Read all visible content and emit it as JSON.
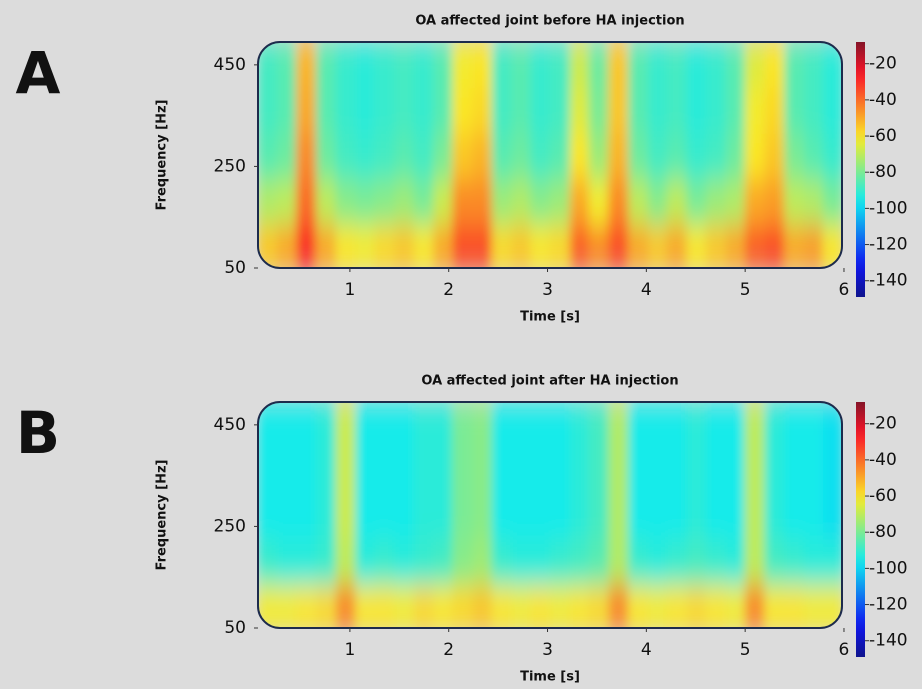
{
  "chart_data": [
    {
      "type": "heatmap",
      "panel_label": "A",
      "title": "OA affected joint before HA injection",
      "x_label": "Time [s]",
      "y_label": "Frequency [Hz]",
      "x": [
        0.17,
        0.37,
        0.56,
        0.76,
        0.96,
        1.16,
        1.35,
        1.55,
        1.75,
        1.95,
        2.14,
        2.34,
        2.54,
        2.74,
        2.93,
        3.13,
        3.33,
        3.52,
        3.72,
        3.92,
        4.12,
        4.31,
        4.51,
        4.71,
        4.91,
        5.1,
        5.3,
        5.5,
        5.7,
        5.89
      ],
      "y": [
        90,
        180,
        270,
        360,
        450
      ],
      "z": [
        [
          -55,
          -50,
          -30,
          -50,
          -60,
          -62,
          -58,
          -55,
          -60,
          -50,
          -35,
          -35,
          -58,
          -55,
          -60,
          -58,
          -38,
          -45,
          -35,
          -50,
          -55,
          -50,
          -60,
          -55,
          -50,
          -38,
          -35,
          -50,
          -48,
          -60
        ],
        [
          -72,
          -70,
          -40,
          -70,
          -78,
          -80,
          -78,
          -75,
          -80,
          -68,
          -45,
          -45,
          -75,
          -72,
          -78,
          -75,
          -50,
          -62,
          -45,
          -70,
          -78,
          -70,
          -80,
          -75,
          -72,
          -50,
          -48,
          -70,
          -72,
          -80
        ],
        [
          -85,
          -82,
          -45,
          -82,
          -88,
          -90,
          -88,
          -85,
          -88,
          -80,
          -55,
          -52,
          -85,
          -82,
          -88,
          -85,
          -60,
          -75,
          -52,
          -82,
          -88,
          -85,
          -90,
          -88,
          -82,
          -60,
          -55,
          -80,
          -85,
          -90
        ],
        [
          -88,
          -85,
          -50,
          -85,
          -90,
          -92,
          -90,
          -88,
          -90,
          -85,
          -60,
          -58,
          -88,
          -85,
          -90,
          -88,
          -65,
          -80,
          -55,
          -85,
          -90,
          -88,
          -92,
          -90,
          -85,
          -62,
          -58,
          -85,
          -88,
          -92
        ],
        [
          -88,
          -85,
          -52,
          -85,
          -90,
          -92,
          -90,
          -88,
          -90,
          -85,
          -62,
          -60,
          -88,
          -85,
          -90,
          -88,
          -68,
          -82,
          -55,
          -85,
          -90,
          -88,
          -92,
          -90,
          -85,
          -65,
          -60,
          -85,
          -88,
          -92
        ]
      ],
      "xlim": [
        0.07,
        5.98
      ],
      "xticks": [
        1,
        2,
        3,
        4,
        5,
        6
      ],
      "ylim": [
        50,
        495
      ],
      "yticks": [
        50,
        250,
        450
      ],
      "colormap": "jet",
      "clim": [
        -149,
        -8
      ],
      "cticks": [
        -20,
        -40,
        -60,
        -80,
        -100,
        -120,
        -140
      ]
    },
    {
      "type": "heatmap",
      "panel_label": "B",
      "title": "OA affected joint after HA injection",
      "x_label": "Time [s]",
      "y_label": "Frequency [Hz]",
      "x": [
        0.17,
        0.37,
        0.56,
        0.76,
        0.96,
        1.16,
        1.35,
        1.55,
        1.75,
        1.95,
        2.14,
        2.34,
        2.54,
        2.74,
        2.93,
        3.13,
        3.33,
        3.52,
        3.72,
        3.92,
        4.12,
        4.31,
        4.51,
        4.71,
        4.91,
        5.1,
        5.3,
        5.5,
        5.7,
        5.89
      ],
      "y": [
        90,
        180,
        270,
        360,
        450
      ],
      "z": [
        [
          -62,
          -62,
          -60,
          -58,
          -45,
          -60,
          -60,
          -62,
          -58,
          -60,
          -58,
          -55,
          -60,
          -62,
          -60,
          -62,
          -60,
          -58,
          -45,
          -60,
          -62,
          -60,
          -58,
          -60,
          -62,
          -45,
          -60,
          -60,
          -62,
          -62
        ],
        [
          -90,
          -92,
          -92,
          -90,
          -70,
          -92,
          -90,
          -92,
          -90,
          -88,
          -78,
          -75,
          -90,
          -92,
          -92,
          -90,
          -88,
          -85,
          -72,
          -90,
          -92,
          -90,
          -88,
          -90,
          -92,
          -70,
          -88,
          -90,
          -92,
          -92
        ],
        [
          -95,
          -95,
          -95,
          -92,
          -68,
          -95,
          -95,
          -95,
          -92,
          -92,
          -80,
          -78,
          -95,
          -95,
          -95,
          -95,
          -92,
          -88,
          -72,
          -95,
          -95,
          -95,
          -92,
          -95,
          -95,
          -70,
          -92,
          -95,
          -95,
          -98
        ],
        [
          -95,
          -95,
          -95,
          -92,
          -68,
          -95,
          -95,
          -95,
          -92,
          -92,
          -80,
          -78,
          -95,
          -95,
          -95,
          -95,
          -92,
          -88,
          -72,
          -95,
          -95,
          -95,
          -92,
          -95,
          -95,
          -70,
          -92,
          -95,
          -95,
          -98
        ],
        [
          -95,
          -95,
          -95,
          -92,
          -68,
          -95,
          -95,
          -95,
          -92,
          -92,
          -80,
          -78,
          -95,
          -95,
          -95,
          -95,
          -92,
          -88,
          -72,
          -95,
          -95,
          -95,
          -92,
          -95,
          -95,
          -70,
          -92,
          -95,
          -95,
          -98
        ]
      ],
      "xlim": [
        0.07,
        5.98
      ],
      "xticks": [
        1,
        2,
        3,
        4,
        5,
        6
      ],
      "ylim": [
        50,
        495
      ],
      "yticks": [
        50,
        250,
        450
      ],
      "colormap": "jet",
      "clim": [
        -149,
        -8
      ],
      "cticks": [
        -20,
        -40,
        -60,
        -80,
        -100,
        -120,
        -140
      ]
    }
  ]
}
